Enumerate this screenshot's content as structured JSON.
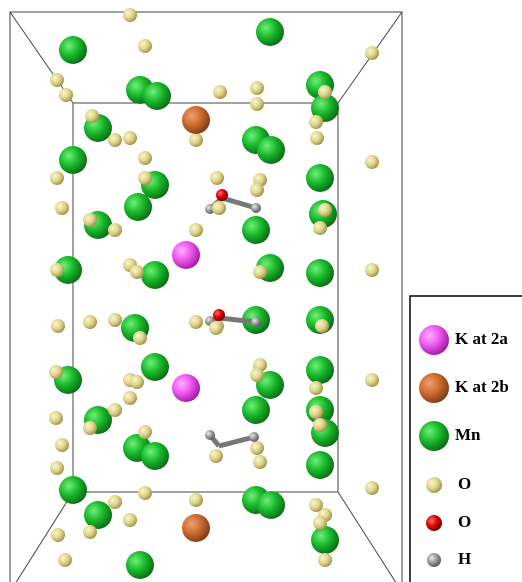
{
  "legend": {
    "items": [
      {
        "label": "K at 2a"
      },
      {
        "label": "K at 2b"
      },
      {
        "label": "Mn"
      },
      {
        "label": "O"
      },
      {
        "label": "O"
      },
      {
        "label": "H"
      }
    ]
  }
}
